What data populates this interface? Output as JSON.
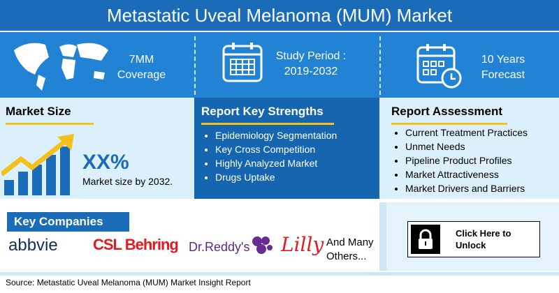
{
  "header": {
    "title": "Metastatic Uveal Melanoma (MUM) Market"
  },
  "highlights": [
    {
      "lines": [
        "7MM",
        "Coverage"
      ]
    },
    {
      "lines": [
        "Study Period :",
        "2019-2032"
      ]
    },
    {
      "lines": [
        "10 Years",
        "Forecast"
      ]
    }
  ],
  "market_size": {
    "title": "Market Size",
    "value": "XX%",
    "caption": "Market size by 2032."
  },
  "key_strengths": {
    "title": "Report Key Strengths",
    "items": [
      "Epidemiology Segmentation",
      "Key Cross Competition",
      "Highly Analyzed Market",
      "Drugs Uptake"
    ]
  },
  "assessment": {
    "title": "Report Assessment",
    "items": [
      "Current Treatment Practices",
      "Unmet Needs",
      "Pipeline Product Profiles",
      "Market Attractiveness",
      "Market Drivers and Barriers"
    ]
  },
  "companies": {
    "title": "Key Companies",
    "logos": [
      "abbvie",
      "CSL Behring",
      "Dr.Reddy's",
      "Lilly"
    ],
    "more": [
      "And Many",
      "Others..."
    ]
  },
  "cta": {
    "lines": [
      "Click Here to",
      "Unlock"
    ]
  },
  "footer": {
    "source": "Source: Metastatic Uveal Melanoma (MUM) Market Insight Report"
  }
}
